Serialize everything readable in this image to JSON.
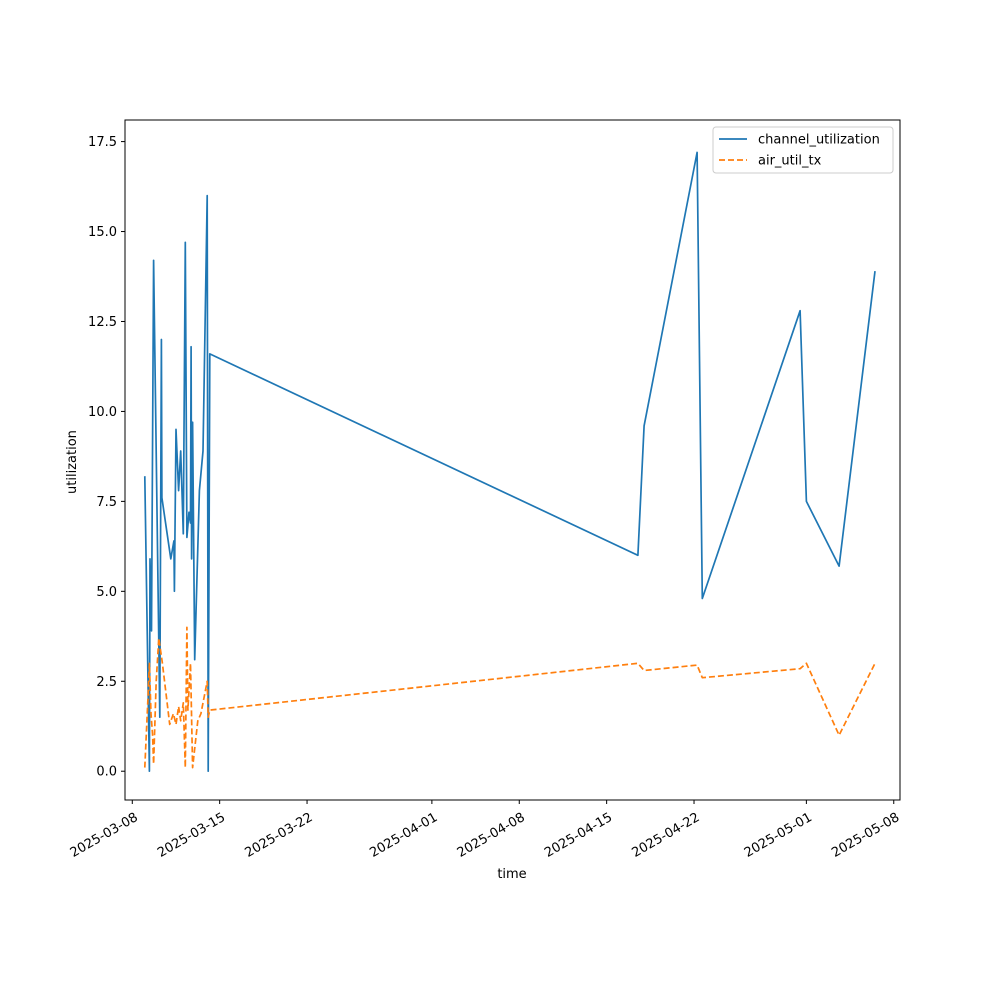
{
  "chart_data": {
    "type": "line",
    "title": "",
    "xlabel": "time",
    "ylabel": "utilization",
    "x_type": "date",
    "xlim": [
      "2025-03-07T10:00",
      "2025-05-08T12:00"
    ],
    "ylim": [
      -0.8,
      18.1
    ],
    "grid": false,
    "legend_position": "top-right",
    "x_ticks": [
      "2025-03-08",
      "2025-03-15",
      "2025-03-22",
      "2025-04-01",
      "2025-04-08",
      "2025-04-15",
      "2025-04-22",
      "2025-05-01",
      "2025-05-08"
    ],
    "y_ticks": [
      0.0,
      2.5,
      5.0,
      7.5,
      10.0,
      12.5,
      15.0,
      17.5
    ],
    "y_tick_labels": [
      "0.0",
      "2.5",
      "5.0",
      "7.5",
      "10.0",
      "12.5",
      "15.0",
      "17.5"
    ],
    "series": [
      {
        "name": "channel_utilization",
        "color": "#1f77b4",
        "style": "solid",
        "points": [
          [
            "2025-03-09T00:00",
            8.2
          ],
          [
            "2025-03-09T09:00",
            0.0
          ],
          [
            "2025-03-09T10:00",
            5.9
          ],
          [
            "2025-03-09T13:00",
            3.9
          ],
          [
            "2025-03-09T17:00",
            14.2
          ],
          [
            "2025-03-10T05:00",
            1.5
          ],
          [
            "2025-03-10T08:00",
            12.0
          ],
          [
            "2025-03-10T09:00",
            7.6
          ],
          [
            "2025-03-11T02:00",
            5.9
          ],
          [
            "2025-03-11T08:00",
            6.4
          ],
          [
            "2025-03-11T09:00",
            5.0
          ],
          [
            "2025-03-11T12:00",
            9.5
          ],
          [
            "2025-03-11T17:00",
            7.8
          ],
          [
            "2025-03-11T21:00",
            8.9
          ],
          [
            "2025-03-12T02:00",
            6.6
          ],
          [
            "2025-03-12T06:00",
            14.7
          ],
          [
            "2025-03-12T09:00",
            6.5
          ],
          [
            "2025-03-12T13:00",
            7.2
          ],
          [
            "2025-03-12T16:00",
            6.9
          ],
          [
            "2025-03-12T17:00",
            11.8
          ],
          [
            "2025-03-12T18:00",
            5.9
          ],
          [
            "2025-03-12T20:00",
            9.7
          ],
          [
            "2025-03-13T00:00",
            3.1
          ],
          [
            "2025-03-13T09:00",
            7.8
          ],
          [
            "2025-03-13T16:00",
            8.9
          ],
          [
            "2025-03-14T00:00",
            16.0
          ],
          [
            "2025-03-14T02:00",
            0.0
          ],
          [
            "2025-03-14T05:00",
            11.6
          ],
          [
            "2025-04-17T12:00",
            6.0
          ],
          [
            "2025-04-18T00:00",
            9.6
          ],
          [
            "2025-04-22T06:00",
            17.2
          ],
          [
            "2025-04-22T16:00",
            4.8
          ],
          [
            "2025-04-30T12:00",
            12.8
          ],
          [
            "2025-05-01T00:00",
            7.5
          ],
          [
            "2025-05-03T15:00",
            5.7
          ],
          [
            "2025-05-06T12:00",
            13.9
          ]
        ]
      },
      {
        "name": "air_util_tx",
        "color": "#ff7f0e",
        "style": "dashed",
        "points": [
          [
            "2025-03-09T00:00",
            0.1
          ],
          [
            "2025-03-09T06:00",
            2.0
          ],
          [
            "2025-03-09T09:00",
            3.0
          ],
          [
            "2025-03-09T12:00",
            1.6
          ],
          [
            "2025-03-09T15:00",
            1.0
          ],
          [
            "2025-03-09T17:00",
            0.2
          ],
          [
            "2025-03-09T22:00",
            2.5
          ],
          [
            "2025-03-10T03:00",
            3.7
          ],
          [
            "2025-03-10T10:00",
            3.0
          ],
          [
            "2025-03-11T00:00",
            1.3
          ],
          [
            "2025-03-11T07:00",
            1.6
          ],
          [
            "2025-03-11T12:00",
            1.3
          ],
          [
            "2025-03-11T17:00",
            1.8
          ],
          [
            "2025-03-11T21:00",
            1.4
          ],
          [
            "2025-03-12T02:00",
            1.9
          ],
          [
            "2025-03-12T06:00",
            0.1
          ],
          [
            "2025-03-12T09:00",
            4.0
          ],
          [
            "2025-03-12T11:00",
            1.7
          ],
          [
            "2025-03-12T16:00",
            3.0
          ],
          [
            "2025-03-12T20:00",
            0.1
          ],
          [
            "2025-03-13T06:00",
            1.4
          ],
          [
            "2025-03-13T12:00",
            1.6
          ],
          [
            "2025-03-14T00:00",
            2.5
          ],
          [
            "2025-03-14T02:00",
            1.5
          ],
          [
            "2025-03-14T05:00",
            1.7
          ],
          [
            "2025-04-17T12:00",
            3.0
          ],
          [
            "2025-04-18T00:00",
            2.8
          ],
          [
            "2025-04-22T06:00",
            2.95
          ],
          [
            "2025-04-22T16:00",
            2.6
          ],
          [
            "2025-04-30T12:00",
            2.85
          ],
          [
            "2025-05-01T00:00",
            3.0
          ],
          [
            "2025-05-03T15:00",
            1.0
          ],
          [
            "2025-05-06T12:00",
            3.0
          ]
        ]
      }
    ]
  }
}
